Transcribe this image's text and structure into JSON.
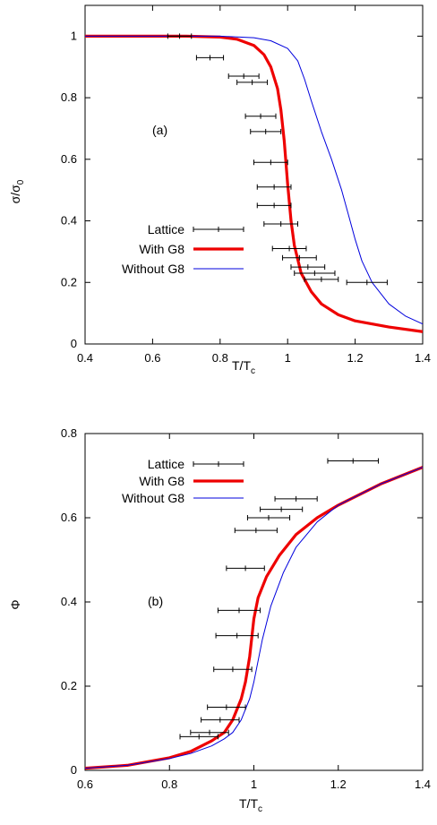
{
  "colors": {
    "lattice": "#000000",
    "with_g8": "#ee0000",
    "without_g8": "#0000dd"
  },
  "chart_data": [
    {
      "type": "line",
      "panel_label": "(a)",
      "xlabel": "T/T",
      "xlabel_sub": "c",
      "ylabel": "σ/σ",
      "ylabel_sub": "0",
      "xlim": [
        0.4,
        1.4
      ],
      "ylim": [
        0,
        1.1
      ],
      "xticks": [
        0.4,
        0.6,
        0.8,
        1,
        1.2,
        1.4
      ],
      "xtick_labels": [
        "0.4",
        "0.6",
        "0.8",
        "1",
        "1.2",
        "1.4"
      ],
      "yticks": [
        0,
        0.2,
        0.4,
        0.6,
        0.8,
        1
      ],
      "ytick_labels": [
        "0",
        "0.2",
        "0.4",
        "0.6",
        "0.8",
        "1"
      ],
      "legend": {
        "position": "center-left",
        "entries": [
          "Lattice",
          "With G8",
          "Without G8"
        ]
      },
      "series": [
        {
          "name": "Lattice",
          "style": "errorbar",
          "points": [
            {
              "x": 0.68,
              "y": 1.0,
              "xerr": 0.035
            },
            {
              "x": 0.77,
              "y": 0.93,
              "xerr": 0.04
            },
            {
              "x": 0.87,
              "y": 0.87,
              "xerr": 0.045
            },
            {
              "x": 0.895,
              "y": 0.85,
              "xerr": 0.045
            },
            {
              "x": 0.92,
              "y": 0.74,
              "xerr": 0.045
            },
            {
              "x": 0.935,
              "y": 0.69,
              "xerr": 0.045
            },
            {
              "x": 0.95,
              "y": 0.59,
              "xerr": 0.05
            },
            {
              "x": 0.96,
              "y": 0.51,
              "xerr": 0.05
            },
            {
              "x": 0.96,
              "y": 0.45,
              "xerr": 0.05
            },
            {
              "x": 0.98,
              "y": 0.39,
              "xerr": 0.05
            },
            {
              "x": 1.005,
              "y": 0.31,
              "xerr": 0.05
            },
            {
              "x": 1.035,
              "y": 0.28,
              "xerr": 0.05
            },
            {
              "x": 1.06,
              "y": 0.25,
              "xerr": 0.05
            },
            {
              "x": 1.08,
              "y": 0.23,
              "xerr": 0.06
            },
            {
              "x": 1.1,
              "y": 0.21,
              "xerr": 0.05
            },
            {
              "x": 1.235,
              "y": 0.2,
              "xerr": 0.06
            }
          ]
        },
        {
          "name": "With G8",
          "style": "thick",
          "x": [
            0.4,
            0.7,
            0.8,
            0.85,
            0.9,
            0.93,
            0.95,
            0.97,
            0.98,
            0.99,
            1.0,
            1.01,
            1.02,
            1.04,
            1.07,
            1.1,
            1.15,
            1.2,
            1.3,
            1.4
          ],
          "y": [
            1.0,
            1.0,
            0.997,
            0.99,
            0.97,
            0.94,
            0.9,
            0.83,
            0.76,
            0.66,
            0.52,
            0.4,
            0.32,
            0.23,
            0.17,
            0.13,
            0.095,
            0.075,
            0.055,
            0.04
          ]
        },
        {
          "name": "Without G8",
          "style": "thin",
          "x": [
            0.4,
            0.8,
            0.9,
            0.95,
            1.0,
            1.03,
            1.05,
            1.07,
            1.1,
            1.13,
            1.16,
            1.18,
            1.2,
            1.22,
            1.25,
            1.3,
            1.35,
            1.4
          ],
          "y": [
            1.0,
            1.0,
            0.995,
            0.985,
            0.96,
            0.92,
            0.86,
            0.79,
            0.69,
            0.6,
            0.5,
            0.42,
            0.34,
            0.27,
            0.2,
            0.13,
            0.09,
            0.065
          ]
        }
      ]
    },
    {
      "type": "line",
      "panel_label": "(b)",
      "xlabel": "T/T",
      "xlabel_sub": "c",
      "ylabel": "Φ",
      "xlim": [
        0.6,
        1.4
      ],
      "ylim": [
        0,
        0.8
      ],
      "xticks": [
        0.6,
        0.8,
        1,
        1.2,
        1.4
      ],
      "xtick_labels": [
        "0.6",
        "0.8",
        "1",
        "1.2",
        "1.4"
      ],
      "yticks": [
        0,
        0.2,
        0.4,
        0.6,
        0.8
      ],
      "ytick_labels": [
        "0",
        "0.2",
        "0.4",
        "0.6",
        "0.8"
      ],
      "legend": {
        "position": "top-left",
        "entries": [
          "Lattice",
          "With G8",
          "Without G8"
        ]
      },
      "series": [
        {
          "name": "Lattice",
          "style": "errorbar",
          "points": [
            {
              "x": 0.87,
              "y": 0.08,
              "xerr": 0.045
            },
            {
              "x": 0.895,
              "y": 0.09,
              "xerr": 0.045
            },
            {
              "x": 0.92,
              "y": 0.12,
              "xerr": 0.045
            },
            {
              "x": 0.935,
              "y": 0.15,
              "xerr": 0.045
            },
            {
              "x": 0.95,
              "y": 0.24,
              "xerr": 0.045
            },
            {
              "x": 0.96,
              "y": 0.32,
              "xerr": 0.05
            },
            {
              "x": 0.965,
              "y": 0.38,
              "xerr": 0.05
            },
            {
              "x": 0.98,
              "y": 0.48,
              "xerr": 0.045
            },
            {
              "x": 1.005,
              "y": 0.57,
              "xerr": 0.05
            },
            {
              "x": 1.035,
              "y": 0.6,
              "xerr": 0.05
            },
            {
              "x": 1.065,
              "y": 0.62,
              "xerr": 0.05
            },
            {
              "x": 1.1,
              "y": 0.645,
              "xerr": 0.05
            },
            {
              "x": 1.235,
              "y": 0.735,
              "xerr": 0.06
            }
          ]
        },
        {
          "name": "With G8",
          "style": "thick",
          "x": [
            0.6,
            0.7,
            0.8,
            0.85,
            0.9,
            0.93,
            0.95,
            0.97,
            0.98,
            0.99,
            1.0,
            1.01,
            1.03,
            1.06,
            1.1,
            1.15,
            1.2,
            1.3,
            1.4
          ],
          "y": [
            0.005,
            0.012,
            0.03,
            0.045,
            0.07,
            0.09,
            0.12,
            0.17,
            0.21,
            0.27,
            0.36,
            0.41,
            0.46,
            0.51,
            0.56,
            0.6,
            0.63,
            0.68,
            0.72
          ]
        },
        {
          "name": "Without G8",
          "style": "thin",
          "x": [
            0.6,
            0.7,
            0.8,
            0.85,
            0.9,
            0.93,
            0.95,
            0.97,
            0.99,
            1.0,
            1.01,
            1.02,
            1.04,
            1.07,
            1.1,
            1.15,
            1.2,
            1.3,
            1.4
          ],
          "y": [
            0.005,
            0.012,
            0.028,
            0.04,
            0.058,
            0.075,
            0.09,
            0.12,
            0.17,
            0.21,
            0.26,
            0.31,
            0.39,
            0.47,
            0.53,
            0.59,
            0.63,
            0.68,
            0.72
          ]
        }
      ]
    }
  ]
}
